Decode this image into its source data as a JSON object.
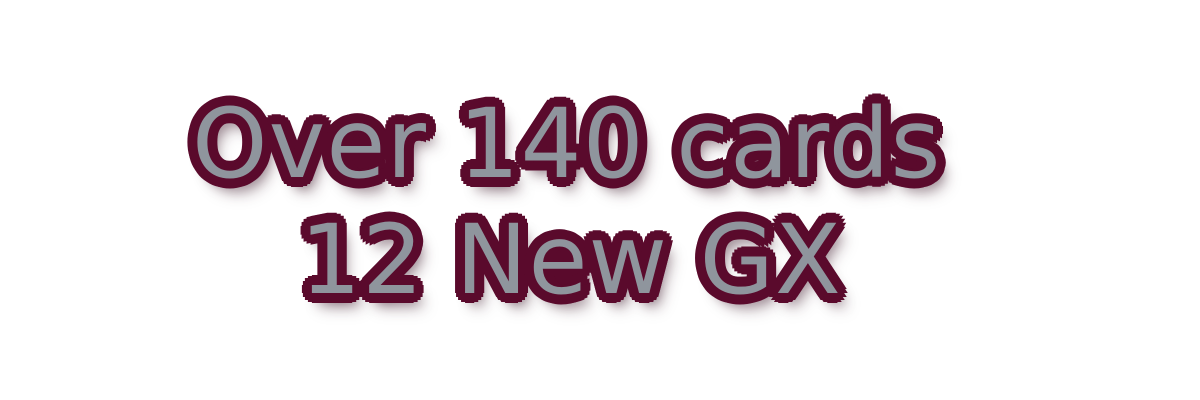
{
  "banner": {
    "line1": "Over 140 cards",
    "line2": "12 New GX"
  },
  "colors": {
    "text_fill": "#8f959d",
    "outline": "#5a0a2c",
    "background": "#ffffff"
  }
}
